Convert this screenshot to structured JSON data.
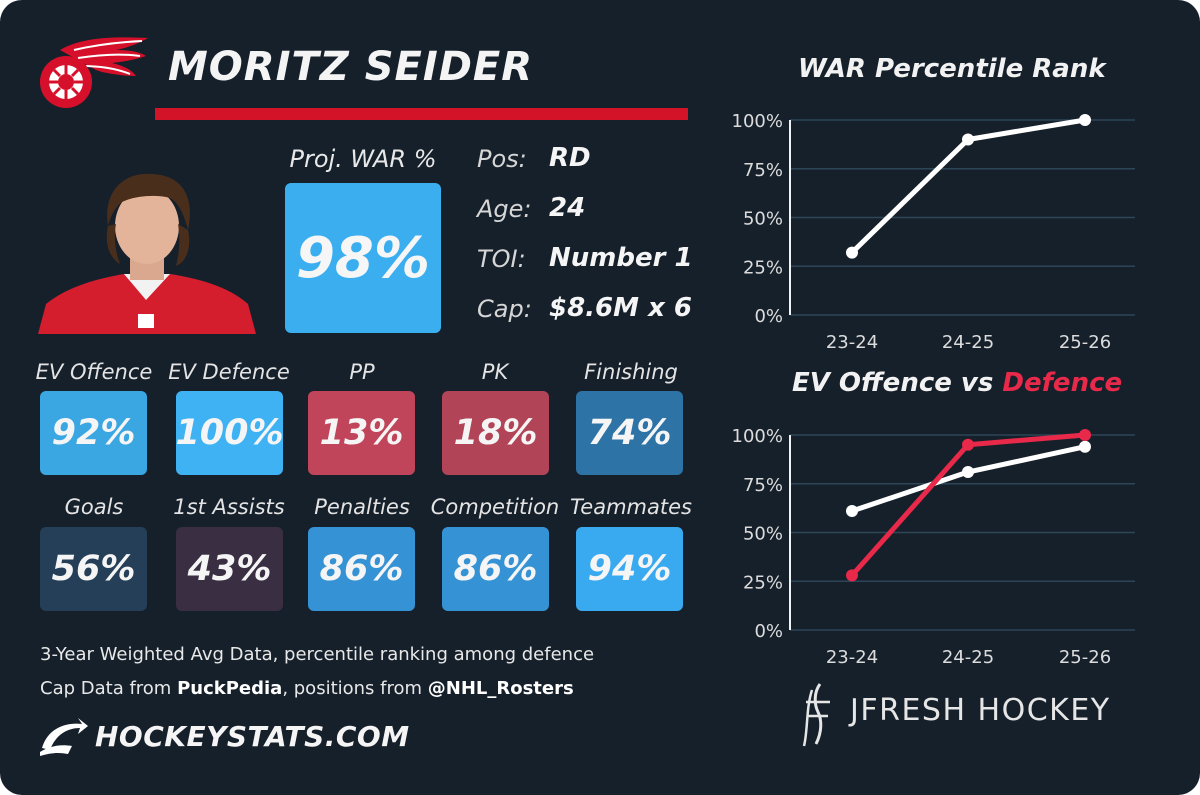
{
  "header": {
    "player_name": "MORITZ SEIDER"
  },
  "projection": {
    "label": "Proj. WAR %",
    "value": "98%",
    "value_pct": 98,
    "color": "#3baef0"
  },
  "info": [
    {
      "label": "Pos:",
      "value": "RD"
    },
    {
      "label": "Age:",
      "value": "24"
    },
    {
      "label": "TOI:",
      "value": "Number 1"
    },
    {
      "label": "Cap:",
      "value": "$8.6M x 6"
    }
  ],
  "tiles": [
    {
      "label": "EV Offence",
      "value": "92%",
      "color": "#3aa6e2"
    },
    {
      "label": "EV Defence",
      "value": "100%",
      "color": "#3fb2f3"
    },
    {
      "label": "PP",
      "value": "13%",
      "color": "#c1455a"
    },
    {
      "label": "PK",
      "value": "18%",
      "color": "#b24457"
    },
    {
      "label": "Finishing",
      "value": "74%",
      "color": "#2d73a6"
    },
    {
      "label": "Goals",
      "value": "56%",
      "color": "#243f57"
    },
    {
      "label": "1st Assists",
      "value": "43%",
      "color": "#3a2f42"
    },
    {
      "label": "Penalties",
      "value": "86%",
      "color": "#3592d4"
    },
    {
      "label": "Competition",
      "value": "86%",
      "color": "#3592d4"
    },
    {
      "label": "Teammates",
      "value": "94%",
      "color": "#3aaaf0"
    }
  ],
  "footer": {
    "line1": "3-Year Weighted Avg Data, percentile ranking among defence",
    "line2_pre": "Cap Data from ",
    "line2_bold1": "PuckPedia",
    "line2_mid": ", positions from ",
    "line2_bold2": "@NHL_Rosters",
    "site": "HOCKEYSTATS.COM"
  },
  "branding": {
    "name": "JFRESH HOCKEY",
    "accent": "#e8294a"
  },
  "chart_data": [
    {
      "type": "line",
      "title": "WAR Percentile Rank",
      "categories": [
        "23-24",
        "24-25",
        "25-26"
      ],
      "yticks": [
        "0%",
        "25%",
        "50%",
        "75%",
        "100%"
      ],
      "ylim": [
        0,
        100
      ],
      "series": [
        {
          "values": [
            32,
            90,
            100
          ],
          "color": "#ffffff"
        }
      ]
    },
    {
      "type": "line",
      "title_part1": "EV Offence vs ",
      "title_part2": "Defence",
      "categories": [
        "23-24",
        "24-25",
        "25-26"
      ],
      "yticks": [
        "0%",
        "25%",
        "50%",
        "75%",
        "100%"
      ],
      "ylim": [
        0,
        100
      ],
      "series": [
        {
          "values": [
            61,
            81,
            94
          ],
          "color": "#ffffff"
        },
        {
          "values": [
            28,
            95,
            100
          ],
          "color": "#e8294a"
        }
      ]
    }
  ]
}
